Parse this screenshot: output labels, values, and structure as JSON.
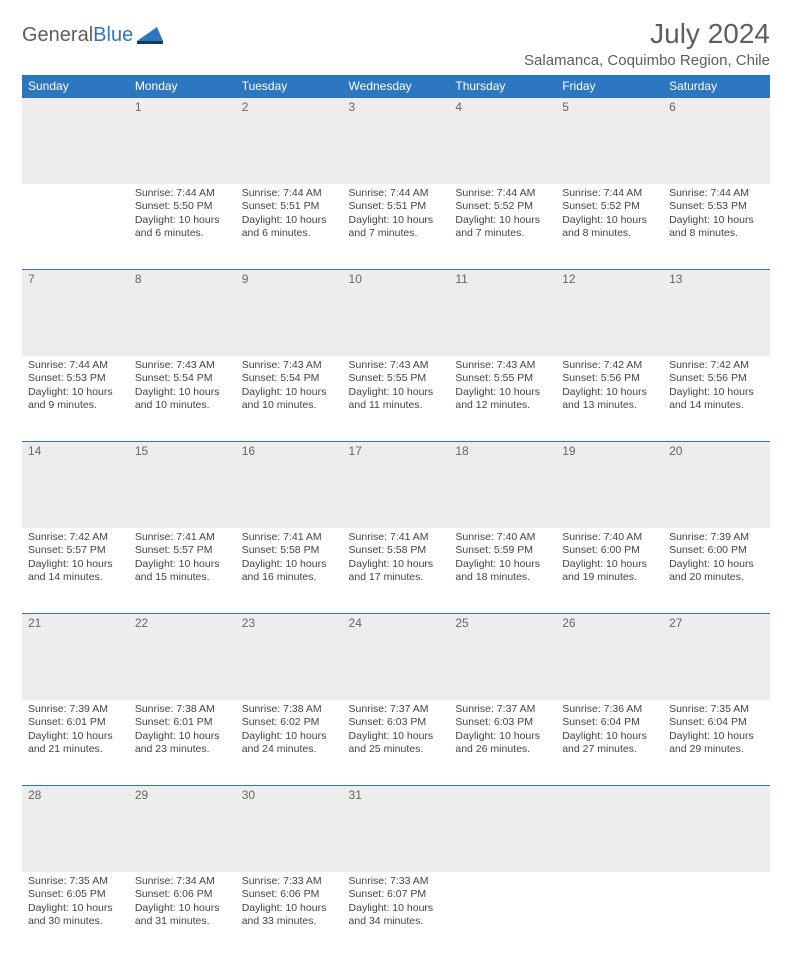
{
  "logo": {
    "word1": "General",
    "word2": "Blue"
  },
  "title": "July 2024",
  "location": "Salamanca, Coquimbo Region, Chile",
  "colors": {
    "header_bg": "#2d76c0",
    "header_text": "#ffffff",
    "daynum_bg": "#ededed",
    "rule": "#2d76c0",
    "text": "#444444",
    "title_text": "#5e5e5e"
  },
  "weekdays": [
    "Sunday",
    "Monday",
    "Tuesday",
    "Wednesday",
    "Thursday",
    "Friday",
    "Saturday"
  ],
  "weeks": [
    [
      null,
      {
        "d": "1",
        "sr": "Sunrise: 7:44 AM",
        "ss": "Sunset: 5:50 PM",
        "dl1": "Daylight: 10 hours",
        "dl2": "and 6 minutes."
      },
      {
        "d": "2",
        "sr": "Sunrise: 7:44 AM",
        "ss": "Sunset: 5:51 PM",
        "dl1": "Daylight: 10 hours",
        "dl2": "and 6 minutes."
      },
      {
        "d": "3",
        "sr": "Sunrise: 7:44 AM",
        "ss": "Sunset: 5:51 PM",
        "dl1": "Daylight: 10 hours",
        "dl2": "and 7 minutes."
      },
      {
        "d": "4",
        "sr": "Sunrise: 7:44 AM",
        "ss": "Sunset: 5:52 PM",
        "dl1": "Daylight: 10 hours",
        "dl2": "and 7 minutes."
      },
      {
        "d": "5",
        "sr": "Sunrise: 7:44 AM",
        "ss": "Sunset: 5:52 PM",
        "dl1": "Daylight: 10 hours",
        "dl2": "and 8 minutes."
      },
      {
        "d": "6",
        "sr": "Sunrise: 7:44 AM",
        "ss": "Sunset: 5:53 PM",
        "dl1": "Daylight: 10 hours",
        "dl2": "and 8 minutes."
      }
    ],
    [
      {
        "d": "7",
        "sr": "Sunrise: 7:44 AM",
        "ss": "Sunset: 5:53 PM",
        "dl1": "Daylight: 10 hours",
        "dl2": "and 9 minutes."
      },
      {
        "d": "8",
        "sr": "Sunrise: 7:43 AM",
        "ss": "Sunset: 5:54 PM",
        "dl1": "Daylight: 10 hours",
        "dl2": "and 10 minutes."
      },
      {
        "d": "9",
        "sr": "Sunrise: 7:43 AM",
        "ss": "Sunset: 5:54 PM",
        "dl1": "Daylight: 10 hours",
        "dl2": "and 10 minutes."
      },
      {
        "d": "10",
        "sr": "Sunrise: 7:43 AM",
        "ss": "Sunset: 5:55 PM",
        "dl1": "Daylight: 10 hours",
        "dl2": "and 11 minutes."
      },
      {
        "d": "11",
        "sr": "Sunrise: 7:43 AM",
        "ss": "Sunset: 5:55 PM",
        "dl1": "Daylight: 10 hours",
        "dl2": "and 12 minutes."
      },
      {
        "d": "12",
        "sr": "Sunrise: 7:42 AM",
        "ss": "Sunset: 5:56 PM",
        "dl1": "Daylight: 10 hours",
        "dl2": "and 13 minutes."
      },
      {
        "d": "13",
        "sr": "Sunrise: 7:42 AM",
        "ss": "Sunset: 5:56 PM",
        "dl1": "Daylight: 10 hours",
        "dl2": "and 14 minutes."
      }
    ],
    [
      {
        "d": "14",
        "sr": "Sunrise: 7:42 AM",
        "ss": "Sunset: 5:57 PM",
        "dl1": "Daylight: 10 hours",
        "dl2": "and 14 minutes."
      },
      {
        "d": "15",
        "sr": "Sunrise: 7:41 AM",
        "ss": "Sunset: 5:57 PM",
        "dl1": "Daylight: 10 hours",
        "dl2": "and 15 minutes."
      },
      {
        "d": "16",
        "sr": "Sunrise: 7:41 AM",
        "ss": "Sunset: 5:58 PM",
        "dl1": "Daylight: 10 hours",
        "dl2": "and 16 minutes."
      },
      {
        "d": "17",
        "sr": "Sunrise: 7:41 AM",
        "ss": "Sunset: 5:58 PM",
        "dl1": "Daylight: 10 hours",
        "dl2": "and 17 minutes."
      },
      {
        "d": "18",
        "sr": "Sunrise: 7:40 AM",
        "ss": "Sunset: 5:59 PM",
        "dl1": "Daylight: 10 hours",
        "dl2": "and 18 minutes."
      },
      {
        "d": "19",
        "sr": "Sunrise: 7:40 AM",
        "ss": "Sunset: 6:00 PM",
        "dl1": "Daylight: 10 hours",
        "dl2": "and 19 minutes."
      },
      {
        "d": "20",
        "sr": "Sunrise: 7:39 AM",
        "ss": "Sunset: 6:00 PM",
        "dl1": "Daylight: 10 hours",
        "dl2": "and 20 minutes."
      }
    ],
    [
      {
        "d": "21",
        "sr": "Sunrise: 7:39 AM",
        "ss": "Sunset: 6:01 PM",
        "dl1": "Daylight: 10 hours",
        "dl2": "and 21 minutes."
      },
      {
        "d": "22",
        "sr": "Sunrise: 7:38 AM",
        "ss": "Sunset: 6:01 PM",
        "dl1": "Daylight: 10 hours",
        "dl2": "and 23 minutes."
      },
      {
        "d": "23",
        "sr": "Sunrise: 7:38 AM",
        "ss": "Sunset: 6:02 PM",
        "dl1": "Daylight: 10 hours",
        "dl2": "and 24 minutes."
      },
      {
        "d": "24",
        "sr": "Sunrise: 7:37 AM",
        "ss": "Sunset: 6:03 PM",
        "dl1": "Daylight: 10 hours",
        "dl2": "and 25 minutes."
      },
      {
        "d": "25",
        "sr": "Sunrise: 7:37 AM",
        "ss": "Sunset: 6:03 PM",
        "dl1": "Daylight: 10 hours",
        "dl2": "and 26 minutes."
      },
      {
        "d": "26",
        "sr": "Sunrise: 7:36 AM",
        "ss": "Sunset: 6:04 PM",
        "dl1": "Daylight: 10 hours",
        "dl2": "and 27 minutes."
      },
      {
        "d": "27",
        "sr": "Sunrise: 7:35 AM",
        "ss": "Sunset: 6:04 PM",
        "dl1": "Daylight: 10 hours",
        "dl2": "and 29 minutes."
      }
    ],
    [
      {
        "d": "28",
        "sr": "Sunrise: 7:35 AM",
        "ss": "Sunset: 6:05 PM",
        "dl1": "Daylight: 10 hours",
        "dl2": "and 30 minutes."
      },
      {
        "d": "29",
        "sr": "Sunrise: 7:34 AM",
        "ss": "Sunset: 6:06 PM",
        "dl1": "Daylight: 10 hours",
        "dl2": "and 31 minutes."
      },
      {
        "d": "30",
        "sr": "Sunrise: 7:33 AM",
        "ss": "Sunset: 6:06 PM",
        "dl1": "Daylight: 10 hours",
        "dl2": "and 33 minutes."
      },
      {
        "d": "31",
        "sr": "Sunrise: 7:33 AM",
        "ss": "Sunset: 6:07 PM",
        "dl1": "Daylight: 10 hours",
        "dl2": "and 34 minutes."
      },
      null,
      null,
      null
    ]
  ]
}
